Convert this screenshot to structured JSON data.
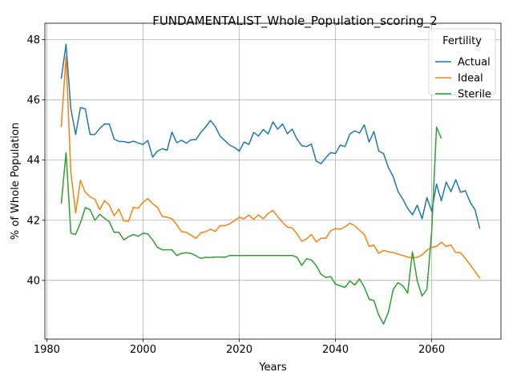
{
  "chart_data": {
    "type": "line",
    "title": "FUNDAMENTALIST_Whole_Population_scoring_2",
    "xlabel": "Years",
    "ylabel": "% of Whole Population",
    "xlim": [
      1979.6,
      2074.4
    ],
    "ylim": [
      38.05,
      48.55
    ],
    "xticks": [
      1980,
      2000,
      2020,
      2040,
      2060
    ],
    "yticks": [
      40,
      42,
      44,
      46,
      48
    ],
    "grid": true,
    "legend": {
      "title": "Fertility",
      "placement": "top-right"
    },
    "series": [
      {
        "name": "Actual",
        "color": "#1f77b4",
        "x": [
          1983,
          1984,
          1985,
          1986,
          1987,
          1988,
          1989,
          1990,
          1991,
          1992,
          1993,
          1994,
          1995,
          1996,
          1997,
          1998,
          1999,
          2000,
          2001,
          2002,
          2003,
          2004,
          2005,
          2006,
          2007,
          2008,
          2009,
          2010,
          2011,
          2012,
          2013,
          2014,
          2015,
          2016,
          2017,
          2018,
          2019,
          2020,
          2021,
          2022,
          2023,
          2024,
          2025,
          2026,
          2027,
          2028,
          2029,
          2030,
          2031,
          2032,
          2033,
          2034,
          2035,
          2036,
          2037,
          2038,
          2039,
          2040,
          2041,
          2042,
          2043,
          2044,
          2045,
          2046,
          2047,
          2048,
          2049,
          2050,
          2051,
          2052,
          2053,
          2054,
          2055,
          2056,
          2057,
          2058,
          2059,
          2060,
          2061,
          2062,
          2063,
          2064,
          2065,
          2066,
          2067,
          2068,
          2069,
          2070
        ],
        "y": [
          46.7,
          47.85,
          45.7,
          44.85,
          45.75,
          45.7,
          44.85,
          44.85,
          45.05,
          45.2,
          45.2,
          44.7,
          44.62,
          44.62,
          44.58,
          44.63,
          44.57,
          44.52,
          44.65,
          44.1,
          44.3,
          44.38,
          44.33,
          44.93,
          44.58,
          44.66,
          44.56,
          44.68,
          44.68,
          44.92,
          45.1,
          45.32,
          45.12,
          44.8,
          44.65,
          44.5,
          44.42,
          44.3,
          44.6,
          44.52,
          44.92,
          44.8,
          45.02,
          44.87,
          45.27,
          45.03,
          45.2,
          44.88,
          45.03,
          44.7,
          44.48,
          44.45,
          44.53,
          43.97,
          43.88,
          44.08,
          44.25,
          44.22,
          44.5,
          44.45,
          44.87,
          44.97,
          44.9,
          45.17,
          44.6,
          44.95,
          44.3,
          44.22,
          43.75,
          43.45,
          42.95,
          42.7,
          42.4,
          42.18,
          42.5,
          42.05,
          42.75,
          42.3,
          43.2,
          42.65,
          43.27,
          42.95,
          43.35,
          42.93,
          42.98,
          42.6,
          42.35,
          41.72
        ]
      },
      {
        "name": "Ideal",
        "color": "#ff7f0e",
        "x": [
          1983,
          1984,
          1985,
          1986,
          1987,
          1988,
          1989,
          1990,
          1991,
          1992,
          1993,
          1994,
          1995,
          1996,
          1997,
          1998,
          1999,
          2000,
          2001,
          2002,
          2003,
          2004,
          2005,
          2006,
          2007,
          2008,
          2009,
          2010,
          2011,
          2012,
          2013,
          2014,
          2015,
          2016,
          2017,
          2018,
          2019,
          2020,
          2021,
          2022,
          2023,
          2024,
          2025,
          2026,
          2027,
          2028,
          2029,
          2030,
          2031,
          2032,
          2033,
          2034,
          2035,
          2036,
          2037,
          2038,
          2039,
          2040,
          2041,
          2042,
          2043,
          2044,
          2045,
          2046,
          2047,
          2048,
          2049,
          2050,
          2051,
          2052,
          2053,
          2054,
          2055,
          2056,
          2057,
          2058,
          2059,
          2060,
          2061,
          2062,
          2063,
          2064,
          2065,
          2066,
          2067,
          2068,
          2069,
          2070
        ],
        "y": [
          45.1,
          47.45,
          43.6,
          42.25,
          43.33,
          42.93,
          42.78,
          42.7,
          42.35,
          42.65,
          42.5,
          42.15,
          42.37,
          41.98,
          41.97,
          42.43,
          42.4,
          42.6,
          42.72,
          42.55,
          42.43,
          42.13,
          42.1,
          42.05,
          41.85,
          41.62,
          41.6,
          41.5,
          41.4,
          41.58,
          41.62,
          41.7,
          41.63,
          41.82,
          41.82,
          41.88,
          41.99,
          42.1,
          42.05,
          42.17,
          42.03,
          42.18,
          42.05,
          42.23,
          42.33,
          42.12,
          41.93,
          41.77,
          41.75,
          41.55,
          41.3,
          41.38,
          41.53,
          41.28,
          41.4,
          41.4,
          41.65,
          41.72,
          41.7,
          41.78,
          41.9,
          41.82,
          41.67,
          41.53,
          41.13,
          41.17,
          40.9,
          41.0,
          40.95,
          40.93,
          40.87,
          40.83,
          40.78,
          40.75,
          40.77,
          40.85,
          41.0,
          41.1,
          41.13,
          41.27,
          41.13,
          41.18,
          40.93,
          40.92,
          40.73,
          40.52,
          40.3,
          40.07
        ]
      },
      {
        "name": "Sterile",
        "color": "#2ca02c",
        "x": [
          1983,
          1984,
          1985,
          1986,
          1987,
          1988,
          1989,
          1990,
          1991,
          1992,
          1993,
          1994,
          1995,
          1996,
          1997,
          1998,
          1999,
          2000,
          2001,
          2002,
          2003,
          2004,
          2005,
          2006,
          2007,
          2008,
          2009,
          2010,
          2011,
          2012,
          2013,
          2014,
          2015,
          2016,
          2017,
          2018,
          2019,
          2020,
          2021,
          2022,
          2023,
          2024,
          2025,
          2026,
          2027,
          2028,
          2029,
          2030,
          2031,
          2032,
          2033,
          2034,
          2035,
          2036,
          2037,
          2038,
          2039,
          2040,
          2041,
          2042,
          2043,
          2044,
          2045,
          2046,
          2047,
          2048,
          2049,
          2050,
          2051,
          2052,
          2053,
          2054,
          2055,
          2056,
          2057,
          2058,
          2059,
          2060,
          2061,
          2062
        ],
        "y": [
          42.55,
          44.25,
          41.57,
          41.53,
          41.92,
          42.42,
          42.35,
          42.0,
          42.2,
          42.07,
          41.95,
          41.6,
          41.6,
          41.35,
          41.45,
          41.53,
          41.47,
          41.57,
          41.55,
          41.35,
          41.1,
          41.02,
          41.02,
          41.02,
          40.83,
          40.9,
          40.92,
          40.9,
          40.82,
          40.73,
          40.77,
          40.76,
          40.78,
          40.78,
          40.77,
          40.83,
          40.83,
          40.83,
          40.83,
          40.83,
          40.83,
          40.83,
          40.83,
          40.83,
          40.83,
          40.83,
          40.83,
          40.83,
          40.83,
          40.77,
          40.5,
          40.72,
          40.68,
          40.5,
          40.2,
          40.1,
          40.13,
          39.88,
          39.82,
          39.77,
          39.98,
          39.85,
          40.05,
          39.78,
          39.38,
          39.33,
          38.85,
          38.55,
          38.95,
          39.7,
          39.93,
          39.82,
          39.58,
          40.95,
          39.98,
          39.48,
          39.7,
          41.65,
          45.1,
          44.72
        ]
      }
    ]
  }
}
